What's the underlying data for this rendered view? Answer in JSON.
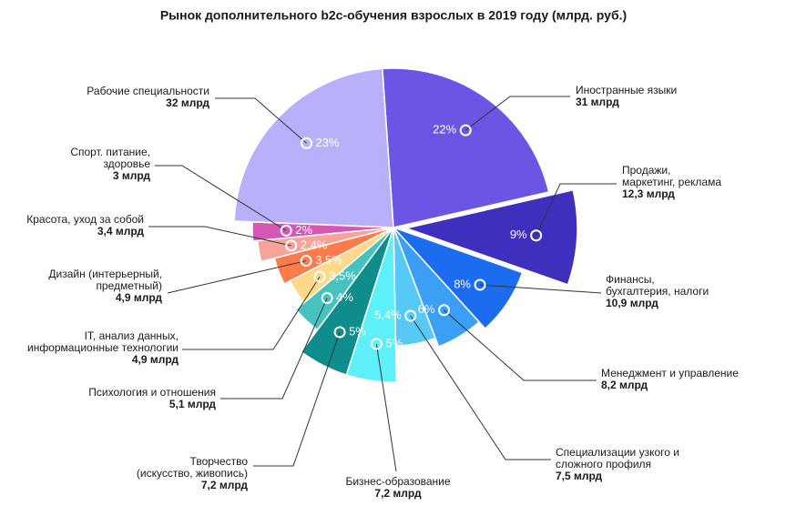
{
  "chart_data": {
    "type": "pie",
    "title": "Рынок дополнительного b2c-обучения взрослых в 2019 году (млрд. руб.)",
    "categories": [
      [
        "Иностранные языки"
      ],
      [
        "Продажи,",
        "маркетинг, реклама"
      ],
      [
        "Финансы,",
        "бухгалтерия, налоги"
      ],
      [
        "Менеджмент и управление"
      ],
      [
        "Специализации узкого и",
        "сложного профиля"
      ],
      [
        "Бизнес-образование"
      ],
      [
        "Творчество",
        "(искусство, живопись)"
      ],
      [
        "Психология и отношения"
      ],
      [
        "IT, анализ данных,",
        "информационные технологии"
      ],
      [
        "Дизайн (интерьерный,",
        "предметный)"
      ],
      [
        "Красота, уход за собой"
      ],
      [
        "Спорт. питание,",
        "здоровье"
      ],
      [
        "Рабочие специальности"
      ]
    ],
    "values": [
      31,
      12.3,
      10.9,
      8.2,
      7.5,
      7.2,
      7.2,
      5.1,
      4.9,
      4.9,
      3.4,
      3,
      32
    ],
    "value_labels": [
      "31 млрд",
      "12,3 млрд",
      "10,9 млрд",
      "8,2 млрд",
      "7,5 млрд",
      "7,2 млрд",
      "7,2 млрд",
      "5,1 млрд",
      "4,9 млрд",
      "4,9 млрд",
      "3,4 млрд",
      "3 млрд",
      "32 млрд"
    ],
    "percents": [
      22,
      9,
      8,
      6,
      5.4,
      5,
      5,
      4,
      3.5,
      3.5,
      2.4,
      2,
      23
    ],
    "percent_labels": [
      "22%",
      "9%",
      "8%",
      "6%",
      "5,4%",
      "5%",
      "5%",
      "4%",
      "3,5%",
      "3,5%",
      "2,4%",
      "2%",
      "23%"
    ],
    "colors": [
      "#6a55e4",
      "#3f2fbf",
      "#1c6cf0",
      "#3a9ff5",
      "#57c9f6",
      "#5ef0f8",
      "#0f8c8c",
      "#47c3bf",
      "#ffd88a",
      "#ff7b4c",
      "#f6a39b",
      "#d556b4",
      "#b9b0fb"
    ]
  }
}
